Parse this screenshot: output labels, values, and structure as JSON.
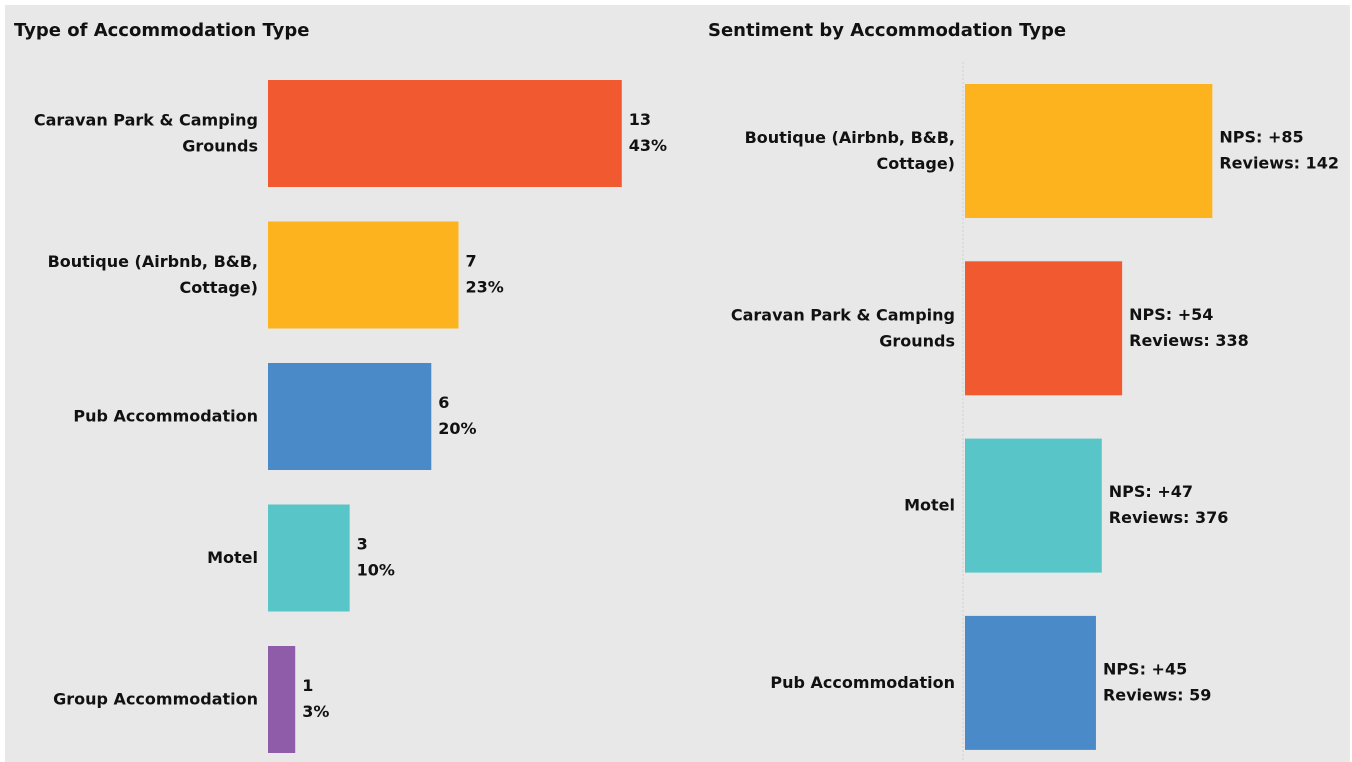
{
  "chart_data": [
    {
      "type": "hbar",
      "title": "Type of Accommodation Type",
      "categories": [
        "Caravan Park & Camping Grounds",
        "Boutique (Airbnb, B&B, Cottage)",
        "Pub Accommodation",
        "Motel",
        "Group Accommodation"
      ],
      "values": [
        13,
        7,
        6,
        3,
        1
      ],
      "percent_labels": [
        "43%",
        "23%",
        "20%",
        "10%",
        "3%"
      ],
      "colors": [
        "#f15a30",
        "#fdb31e",
        "#4a8ac9",
        "#58c5c8",
        "#8e5ca8"
      ],
      "xlim": [
        0,
        14
      ]
    },
    {
      "type": "hbar",
      "title": "Sentiment by Accommodation Type",
      "categories": [
        "Boutique (Airbnb, B&B, Cottage)",
        "Caravan Park & Camping Grounds",
        "Motel",
        "Pub Accommodation"
      ],
      "values": [
        85,
        54,
        47,
        45
      ],
      "value_labels": [
        "NPS: +85",
        "NPS: +54",
        "NPS: +47",
        "NPS: +45"
      ],
      "reviews": [
        142,
        338,
        376,
        59
      ],
      "reviews_labels": [
        "Reviews: 142",
        "Reviews: 338",
        "Reviews: 376",
        "Reviews: 59"
      ],
      "colors": [
        "#fdb31e",
        "#f15a30",
        "#58c5c8",
        "#4a8ac9"
      ],
      "xlim": [
        0,
        100
      ]
    }
  ]
}
